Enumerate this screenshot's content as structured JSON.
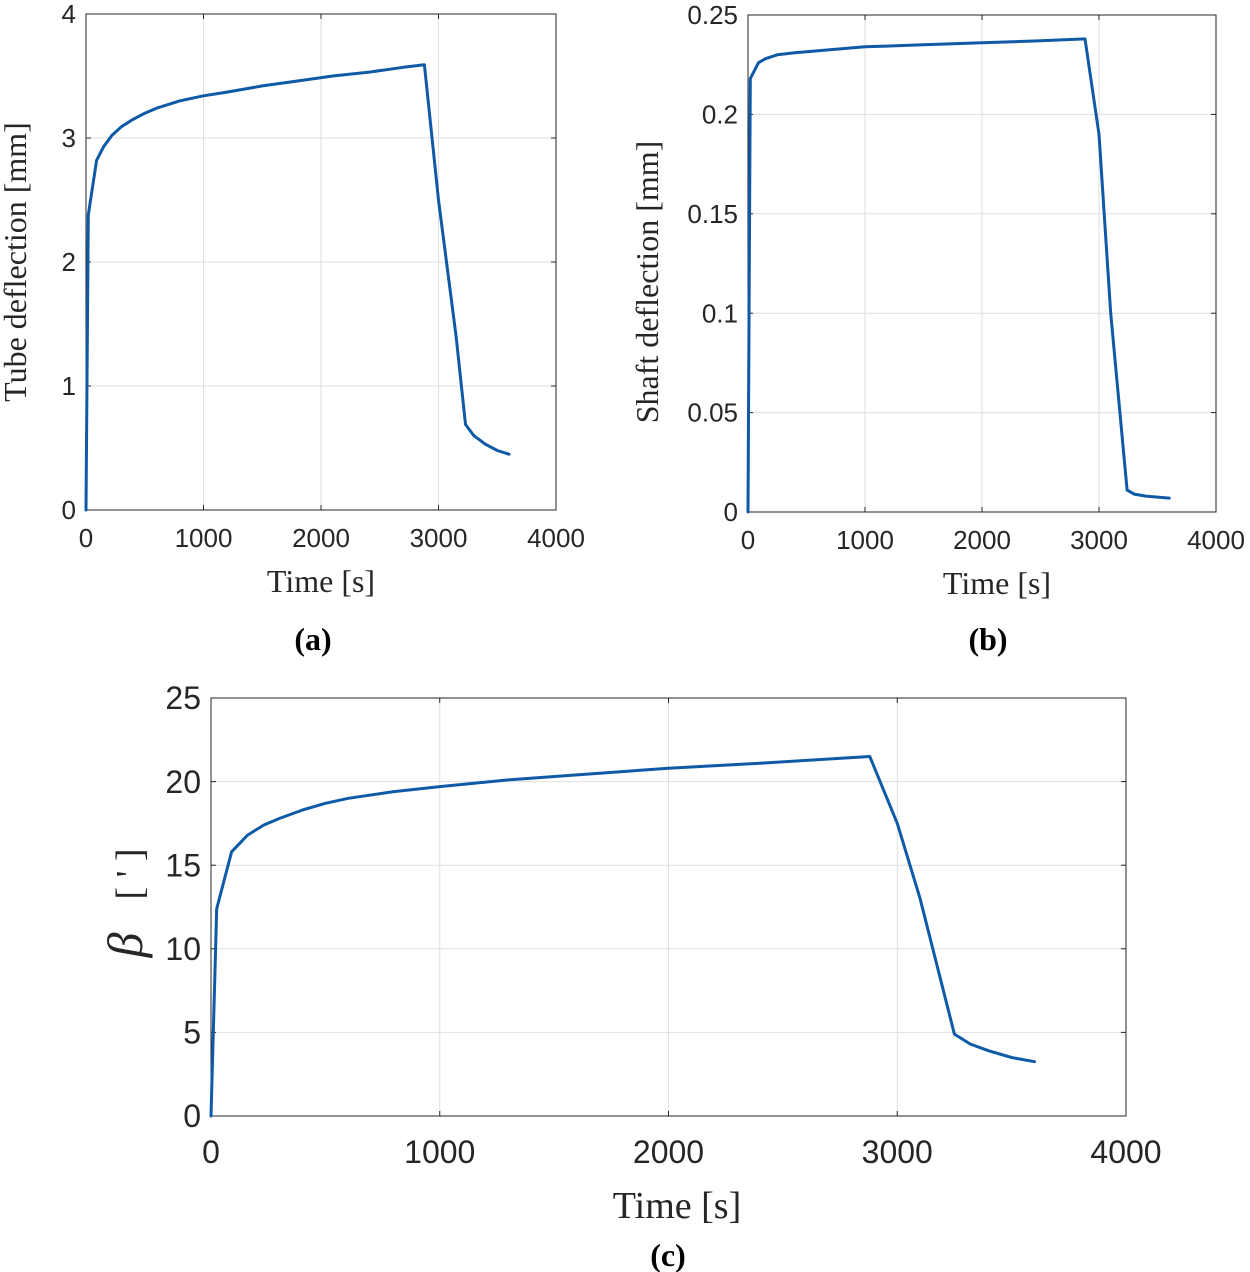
{
  "chart_data": [
    {
      "type": "line",
      "panel_label": "(a)",
      "xlabel": "Time [s]",
      "ylabel": "Tube deflection [mm]",
      "xlim": [
        0,
        4000
      ],
      "ylim": [
        0,
        4
      ],
      "xticks": [
        "0",
        "1000",
        "2000",
        "3000",
        "4000"
      ],
      "yticks": [
        "0",
        "1",
        "2",
        "3",
        "4"
      ],
      "grid": true,
      "color": "#0e5aa7",
      "series": [
        {
          "name": "Tube deflection",
          "x": [
            0,
            20,
            90,
            150,
            220,
            300,
            400,
            500,
            600,
            800,
            1000,
            1200,
            1500,
            1800,
            2100,
            2400,
            2700,
            2880,
            3000,
            3150,
            3230,
            3300,
            3400,
            3500,
            3600
          ],
          "y": [
            0,
            2.38,
            2.82,
            2.93,
            3.02,
            3.09,
            3.15,
            3.2,
            3.24,
            3.3,
            3.34,
            3.37,
            3.42,
            3.46,
            3.5,
            3.53,
            3.57,
            3.59,
            2.5,
            1.4,
            0.69,
            0.6,
            0.53,
            0.48,
            0.45
          ]
        }
      ]
    },
    {
      "type": "line",
      "panel_label": "(b)",
      "xlabel": "Time [s]",
      "ylabel": "Shaft deflection [mm]",
      "xlim": [
        0,
        4000
      ],
      "ylim": [
        0,
        0.25
      ],
      "xticks": [
        "0",
        "1000",
        "2000",
        "3000",
        "4000"
      ],
      "yticks": [
        "0",
        "0.05",
        "0.1",
        "0.15",
        "0.2",
        "0.25"
      ],
      "grid": true,
      "color": "#0e5aa7",
      "series": [
        {
          "name": "Shaft deflection",
          "x": [
            0,
            20,
            90,
            150,
            250,
            400,
            600,
            800,
            1000,
            1500,
            2000,
            2500,
            2880,
            3000,
            3100,
            3240,
            3300,
            3400,
            3500,
            3600
          ],
          "y": [
            0,
            0.218,
            0.226,
            0.228,
            0.23,
            0.231,
            0.232,
            0.233,
            0.234,
            0.235,
            0.236,
            0.237,
            0.238,
            0.19,
            0.1,
            0.011,
            0.009,
            0.008,
            0.0075,
            0.007
          ]
        }
      ]
    },
    {
      "type": "line",
      "panel_label": "(c)",
      "xlabel": "Time [s]",
      "ylabel_symbol": "β",
      "ylabel_unit": "[ ' ]",
      "xlim": [
        0,
        4000
      ],
      "ylim": [
        0,
        25
      ],
      "xticks": [
        "0",
        "1000",
        "2000",
        "3000",
        "4000"
      ],
      "yticks": [
        "0",
        "5",
        "10",
        "15",
        "20",
        "25"
      ],
      "grid": true,
      "color": "#0e5aa7",
      "series": [
        {
          "name": "beta",
          "x": [
            0,
            25,
            90,
            160,
            230,
            300,
            400,
            500,
            600,
            800,
            1000,
            1300,
            1600,
            2000,
            2400,
            2880,
            3000,
            3100,
            3250,
            3320,
            3400,
            3500,
            3600
          ],
          "y": [
            0,
            12.4,
            15.8,
            16.8,
            17.4,
            17.8,
            18.3,
            18.7,
            19.0,
            19.4,
            19.7,
            20.1,
            20.4,
            20.8,
            21.1,
            21.5,
            17.5,
            13.0,
            4.9,
            4.3,
            3.9,
            3.5,
            3.25
          ]
        }
      ]
    }
  ]
}
